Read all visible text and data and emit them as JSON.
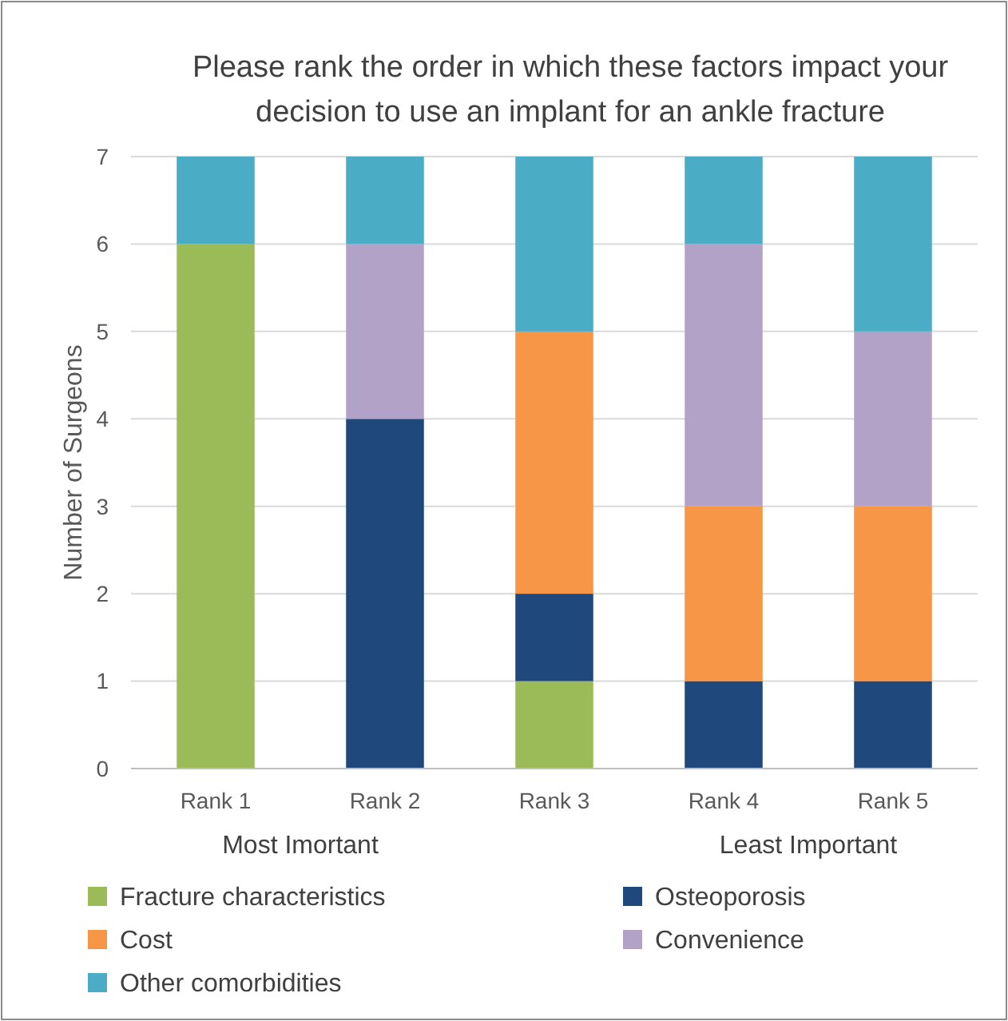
{
  "chart_data": {
    "type": "bar",
    "stacked": true,
    "title": "Please rank the order in which these factors impact your decision to use an implant for an ankle fracture",
    "ylabel": "Number of Surgeons",
    "categories": [
      "Rank 1",
      "Rank 2",
      "Rank 3",
      "Rank 4",
      "Rank 5"
    ],
    "series": [
      {
        "name": "Fracture characteristics",
        "color": "#9bbb59",
        "values": [
          6,
          0,
          1,
          0,
          0
        ]
      },
      {
        "name": "Osteoporosis",
        "color": "#1f497d",
        "values": [
          0,
          4,
          1,
          1,
          1
        ]
      },
      {
        "name": "Cost",
        "color": "#f79646",
        "values": [
          0,
          0,
          3,
          2,
          2
        ]
      },
      {
        "name": "Convenience",
        "color": "#b3a2c7",
        "values": [
          0,
          2,
          0,
          3,
          2
        ]
      },
      {
        "name": "Other comorbidities",
        "color": "#4bacc6",
        "values": [
          1,
          1,
          2,
          1,
          2
        ]
      }
    ],
    "annotations": [
      "Most Imortant",
      "Least Important"
    ],
    "ylim": [
      0,
      7
    ],
    "yticks": [
      0,
      1,
      2,
      3,
      4,
      5,
      6,
      7
    ],
    "grid": "y",
    "legend": "bottom"
  }
}
